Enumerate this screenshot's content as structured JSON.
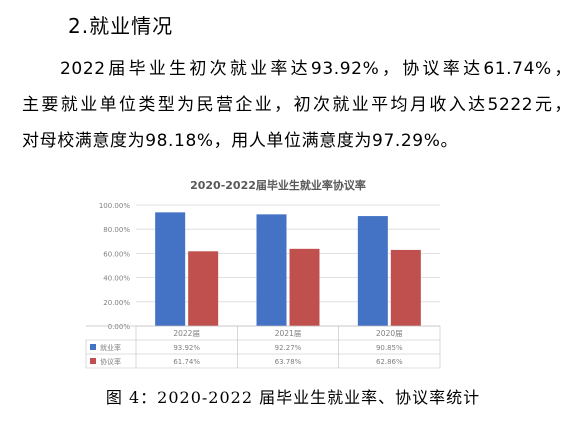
{
  "section": {
    "heading": "2.就业情况"
  },
  "paragraph": {
    "s1": "2022届毕业生初次就业率达93.92%，",
    "s2": "协议率达61.74%，",
    "s3": "主要就业单位类型为民营企业，",
    "s4": "初次就业平均月收入达5222元，",
    "s5": "对母校满意度为98.18%，",
    "s6": "用人单位满意度为97.29%。"
  },
  "colors": {
    "employment": "#4472C4",
    "agreement": "#C0504D",
    "grid": "#D9D9D9",
    "axis_text": "#7F7F7F"
  },
  "chart_data": {
    "type": "bar",
    "title": "2020-2022届毕业生就业率协议率",
    "categories": [
      "2022届",
      "2021届",
      "2020届"
    ],
    "series": [
      {
        "name": "就业率",
        "values": [
          93.92,
          92.27,
          90.85
        ],
        "labels": [
          "93.92%",
          "92.27%",
          "90.85%"
        ]
      },
      {
        "name": "协议率",
        "values": [
          61.74,
          63.78,
          62.86
        ],
        "labels": [
          "61.74%",
          "63.78%",
          "62.86%"
        ]
      }
    ],
    "ylim": [
      0,
      100
    ],
    "yticks": [
      0,
      20,
      40,
      60,
      80,
      100
    ],
    "ytick_labels": [
      "0.00%",
      "20.00%",
      "40.00%",
      "60.00%",
      "80.00%",
      "100.00%"
    ],
    "grid": true,
    "legend": "data-table"
  },
  "caption": "图 4：2020-2022 届毕业生就业率、协议率统计"
}
